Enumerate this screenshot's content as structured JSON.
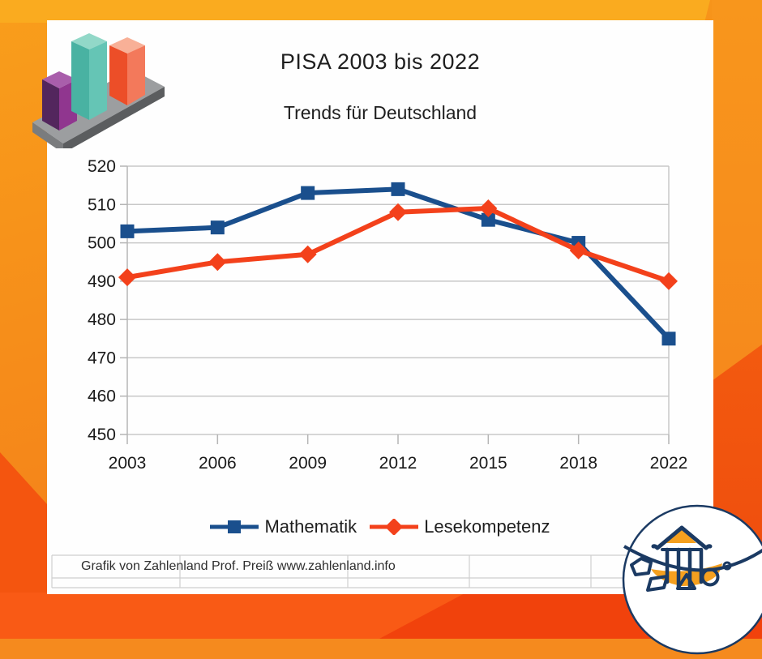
{
  "chart_data": {
    "type": "line",
    "title": "PISA 2003 bis 2022",
    "subtitle": "Trends für Deutschland",
    "categories": [
      "2003",
      "2006",
      "2009",
      "2012",
      "2015",
      "2018",
      "2022"
    ],
    "series": [
      {
        "name": "Mathematik",
        "color": "#1A4F8D",
        "marker": "square",
        "values": [
          503,
          504,
          513,
          514,
          506,
          500,
          475
        ]
      },
      {
        "name": "Lesekompetenz",
        "color": "#F3411B",
        "marker": "diamond",
        "values": [
          491,
          495,
          497,
          508,
          509,
          498,
          490
        ]
      }
    ],
    "ylim": [
      450,
      520
    ],
    "ytick_step": 10,
    "xlabel": "",
    "ylabel": "",
    "grid": "horizontal-only",
    "legend_position": "bottom"
  },
  "footer": {
    "credit": "Grafik von Zahlenland Prof. Preiß www.zahlenland.info"
  },
  "colors": {
    "grid": "#C8C8C8",
    "axis": "#B5B5B5",
    "tick_label": "#1a1a1a",
    "card_bg": "#FEFEFE",
    "frame_orange": "#F58A1E",
    "frame_amber": "#FAAB1F",
    "frame_red_orange": "#F1420C"
  }
}
